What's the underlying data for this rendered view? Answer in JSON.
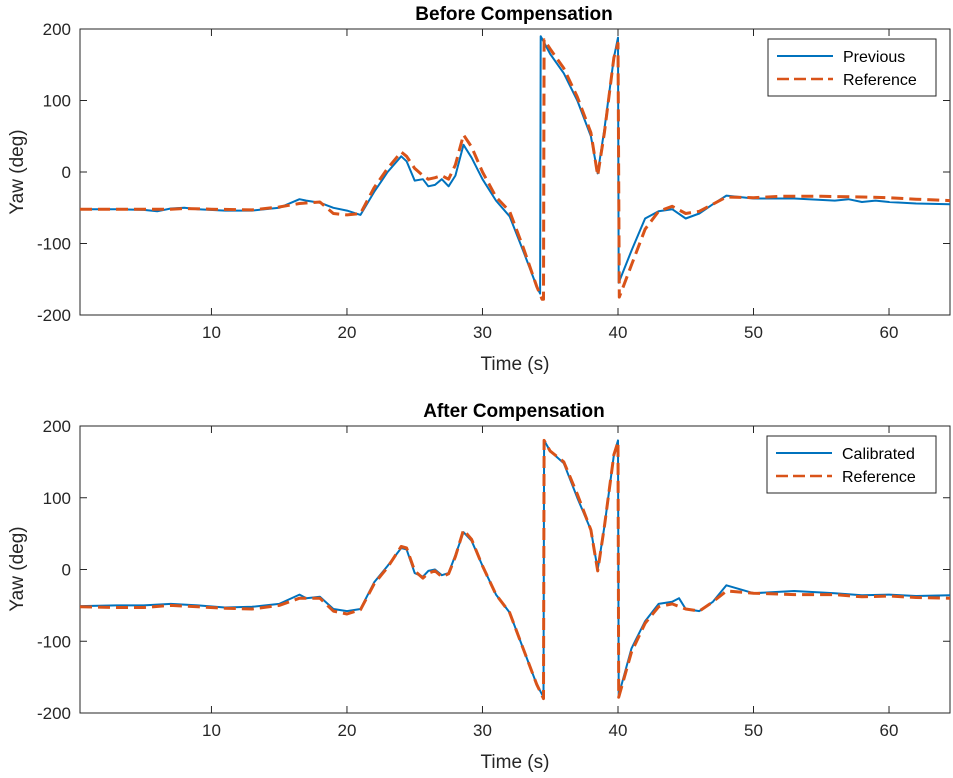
{
  "chart_data": [
    {
      "type": "line",
      "title": "Before Compensation",
      "xlabel": "Time (s)",
      "ylabel": "Yaw (deg)",
      "xlim": [
        0.3,
        64.5
      ],
      "ylim": [
        -200,
        200
      ],
      "xticks": [
        10,
        20,
        30,
        40,
        50,
        60
      ],
      "yticks": [
        -200,
        -100,
        0,
        100,
        200
      ],
      "grid": false,
      "legend_position": "top-right",
      "series": [
        {
          "name": "Previous",
          "color": "#0072BD",
          "style": "solid",
          "points": [
            [
              0.3,
              -52
            ],
            [
              3,
              -52
            ],
            [
              5,
              -53
            ],
            [
              6,
              -55
            ],
            [
              7,
              -51
            ],
            [
              8,
              -50
            ],
            [
              9,
              -52
            ],
            [
              11,
              -54
            ],
            [
              13,
              -54
            ],
            [
              15,
              -50
            ],
            [
              16.5,
              -38
            ],
            [
              17,
              -40
            ],
            [
              18,
              -43
            ],
            [
              19,
              -50
            ],
            [
              20,
              -54
            ],
            [
              21,
              -60
            ],
            [
              22,
              -28
            ],
            [
              23,
              0
            ],
            [
              24,
              22
            ],
            [
              24.4,
              15
            ],
            [
              25,
              -12
            ],
            [
              25.6,
              -10
            ],
            [
              26,
              -20
            ],
            [
              26.5,
              -18
            ],
            [
              27,
              -10
            ],
            [
              27.5,
              -20
            ],
            [
              28,
              -5
            ],
            [
              28.6,
              38
            ],
            [
              29.2,
              20
            ],
            [
              30,
              -10
            ],
            [
              31,
              -40
            ],
            [
              32,
              -62
            ],
            [
              33,
              -110
            ],
            [
              34,
              -160
            ],
            [
              34.25,
              -170
            ],
            [
              34.3,
              190
            ],
            [
              35,
              165
            ],
            [
              36,
              138
            ],
            [
              37,
              100
            ],
            [
              38,
              50
            ],
            [
              38.5,
              -2
            ],
            [
              39,
              60
            ],
            [
              39.7,
              160
            ],
            [
              40,
              188
            ],
            [
              40.05,
              -155
            ],
            [
              41,
              -110
            ],
            [
              42,
              -65
            ],
            [
              43,
              -55
            ],
            [
              44,
              -52
            ],
            [
              45,
              -65
            ],
            [
              46,
              -58
            ],
            [
              47,
              -45
            ],
            [
              48,
              -33
            ],
            [
              50,
              -37
            ],
            [
              53,
              -37
            ],
            [
              56,
              -40
            ],
            [
              57,
              -38
            ],
            [
              58,
              -42
            ],
            [
              59,
              -40
            ],
            [
              60,
              -42
            ],
            [
              62,
              -44
            ],
            [
              64.5,
              -45
            ]
          ]
        },
        {
          "name": "Reference",
          "color": "#D95319",
          "style": "dashed",
          "points": [
            [
              0.3,
              -52
            ],
            [
              3,
              -52
            ],
            [
              5,
              -52
            ],
            [
              7,
              -52
            ],
            [
              8,
              -51
            ],
            [
              10,
              -52
            ],
            [
              13,
              -53
            ],
            [
              15,
              -49
            ],
            [
              16.5,
              -44
            ],
            [
              18,
              -42
            ],
            [
              19,
              -58
            ],
            [
              20,
              -60
            ],
            [
              21,
              -58
            ],
            [
              22,
              -22
            ],
            [
              23,
              5
            ],
            [
              24,
              28
            ],
            [
              24.4,
              22
            ],
            [
              25,
              5
            ],
            [
              25.6,
              -5
            ],
            [
              26,
              -10
            ],
            [
              26.5,
              -8
            ],
            [
              27,
              -5
            ],
            [
              27.5,
              -10
            ],
            [
              28,
              10
            ],
            [
              28.6,
              52
            ],
            [
              29.2,
              35
            ],
            [
              30,
              0
            ],
            [
              31,
              -35
            ],
            [
              32,
              -55
            ],
            [
              33,
              -105
            ],
            [
              34,
              -160
            ],
            [
              34.4,
              -178
            ],
            [
              34.5,
              -178
            ],
            [
              34.55,
              185
            ],
            [
              35,
              172
            ],
            [
              36,
              145
            ],
            [
              37,
              105
            ],
            [
              38,
              55
            ],
            [
              38.5,
              -5
            ],
            [
              39,
              55
            ],
            [
              39.7,
              160
            ],
            [
              40,
              180
            ],
            [
              40.1,
              -175
            ],
            [
              41,
              -130
            ],
            [
              42,
              -80
            ],
            [
              43,
              -55
            ],
            [
              44,
              -48
            ],
            [
              45,
              -58
            ],
            [
              46,
              -55
            ],
            [
              47,
              -45
            ],
            [
              48,
              -35
            ],
            [
              50,
              -36
            ],
            [
              52,
              -34
            ],
            [
              55,
              -34
            ],
            [
              58,
              -35
            ],
            [
              60,
              -36
            ],
            [
              62,
              -38
            ],
            [
              64.5,
              -40
            ]
          ]
        }
      ]
    },
    {
      "type": "line",
      "title": "After Compensation",
      "xlabel": "Time (s)",
      "ylabel": "Yaw (deg)",
      "xlim": [
        0.3,
        64.5
      ],
      "ylim": [
        -200,
        200
      ],
      "xticks": [
        10,
        20,
        30,
        40,
        50,
        60
      ],
      "yticks": [
        -200,
        -100,
        0,
        100,
        200
      ],
      "grid": false,
      "legend_position": "top-right",
      "series": [
        {
          "name": "Calibrated",
          "color": "#0072BD",
          "style": "solid",
          "points": [
            [
              0.3,
              -51
            ],
            [
              3,
              -50
            ],
            [
              5,
              -50
            ],
            [
              7,
              -48
            ],
            [
              9,
              -50
            ],
            [
              11,
              -53
            ],
            [
              13,
              -52
            ],
            [
              15,
              -48
            ],
            [
              16.5,
              -35
            ],
            [
              17,
              -40
            ],
            [
              18,
              -38
            ],
            [
              19,
              -55
            ],
            [
              20,
              -58
            ],
            [
              21,
              -55
            ],
            [
              22,
              -18
            ],
            [
              23,
              5
            ],
            [
              24,
              30
            ],
            [
              24.4,
              28
            ],
            [
              25,
              -5
            ],
            [
              25.6,
              -10
            ],
            [
              26,
              -2
            ],
            [
              26.5,
              0
            ],
            [
              27,
              -8
            ],
            [
              27.5,
              -5
            ],
            [
              28,
              20
            ],
            [
              28.6,
              52
            ],
            [
              29.2,
              40
            ],
            [
              30,
              5
            ],
            [
              31,
              -35
            ],
            [
              32,
              -60
            ],
            [
              33,
              -110
            ],
            [
              34,
              -160
            ],
            [
              34.5,
              -178
            ],
            [
              34.55,
              180
            ],
            [
              35,
              165
            ],
            [
              36,
              148
            ],
            [
              37,
              100
            ],
            [
              38,
              55
            ],
            [
              38.5,
              0
            ],
            [
              39,
              60
            ],
            [
              39.7,
              160
            ],
            [
              40,
              180
            ],
            [
              40.05,
              -175
            ],
            [
              41,
              -110
            ],
            [
              42,
              -72
            ],
            [
              43,
              -48
            ],
            [
              44,
              -45
            ],
            [
              44.5,
              -40
            ],
            [
              45,
              -55
            ],
            [
              46,
              -58
            ],
            [
              47,
              -45
            ],
            [
              48,
              -22
            ],
            [
              50,
              -33
            ],
            [
              53,
              -30
            ],
            [
              56,
              -33
            ],
            [
              58,
              -36
            ],
            [
              60,
              -35
            ],
            [
              62,
              -37
            ],
            [
              64.5,
              -36
            ]
          ]
        },
        {
          "name": "Reference",
          "color": "#D95319",
          "style": "dashed",
          "points": [
            [
              0.3,
              -52
            ],
            [
              3,
              -53
            ],
            [
              5,
              -53
            ],
            [
              7,
              -50
            ],
            [
              9,
              -52
            ],
            [
              11,
              -54
            ],
            [
              13,
              -55
            ],
            [
              15,
              -50
            ],
            [
              16.5,
              -40
            ],
            [
              18,
              -40
            ],
            [
              19,
              -58
            ],
            [
              20,
              -62
            ],
            [
              21,
              -56
            ],
            [
              22,
              -20
            ],
            [
              23,
              3
            ],
            [
              24,
              32
            ],
            [
              24.4,
              30
            ],
            [
              25,
              -2
            ],
            [
              25.6,
              -12
            ],
            [
              26,
              -5
            ],
            [
              26.5,
              -2
            ],
            [
              27,
              -10
            ],
            [
              27.5,
              -6
            ],
            [
              28,
              18
            ],
            [
              28.6,
              55
            ],
            [
              29.2,
              42
            ],
            [
              30,
              5
            ],
            [
              31,
              -35
            ],
            [
              32,
              -60
            ],
            [
              33,
              -110
            ],
            [
              34,
              -160
            ],
            [
              34.5,
              -180
            ],
            [
              34.55,
              180
            ],
            [
              35,
              165
            ],
            [
              36,
              150
            ],
            [
              37,
              105
            ],
            [
              38,
              55
            ],
            [
              38.5,
              -2
            ],
            [
              39,
              60
            ],
            [
              39.7,
              160
            ],
            [
              40,
              178
            ],
            [
              40.05,
              -178
            ],
            [
              41,
              -115
            ],
            [
              42,
              -75
            ],
            [
              43,
              -52
            ],
            [
              44,
              -48
            ],
            [
              45,
              -55
            ],
            [
              46,
              -58
            ],
            [
              47,
              -45
            ],
            [
              48,
              -30
            ],
            [
              50,
              -33
            ],
            [
              53,
              -35
            ],
            [
              56,
              -35
            ],
            [
              58,
              -38
            ],
            [
              60,
              -37
            ],
            [
              62,
              -39
            ],
            [
              64.5,
              -40
            ]
          ]
        }
      ]
    }
  ]
}
